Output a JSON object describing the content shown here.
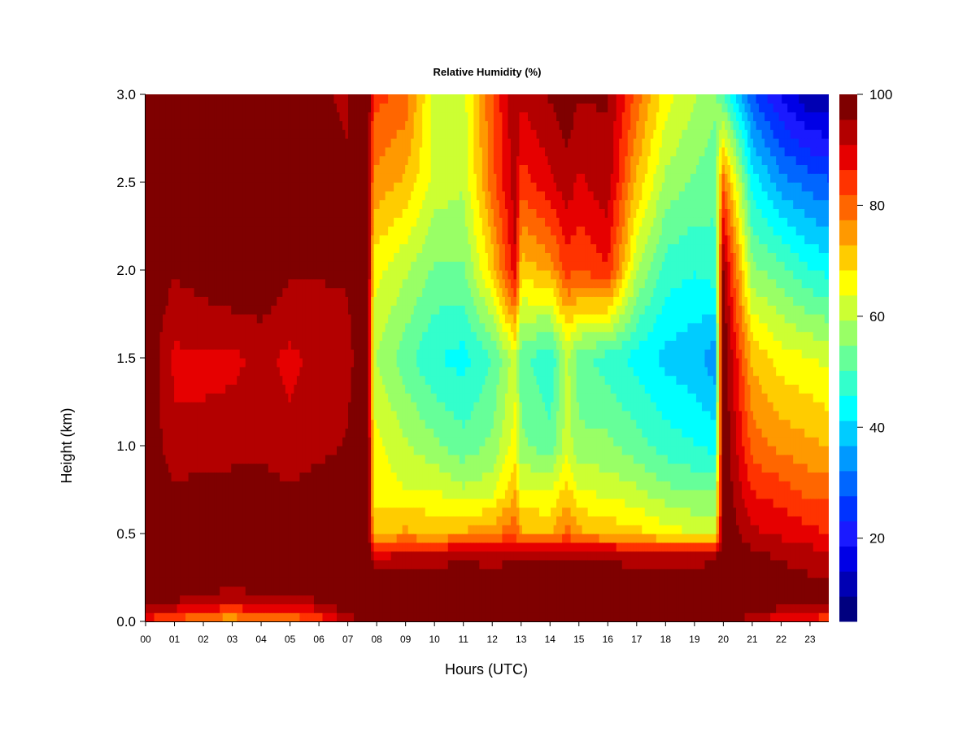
{
  "chart_data": {
    "type": "heatmap",
    "title": "Relative Humidity (%)",
    "xlabel": "Hours (UTC)",
    "ylabel": "Height (km)",
    "x_tick_labels": [
      "00",
      "01",
      "02",
      "03",
      "04",
      "05",
      "06",
      "07",
      "08",
      "09",
      "10",
      "11",
      "12",
      "13",
      "14",
      "15",
      "16",
      "17",
      "18",
      "19",
      "20",
      "21",
      "22",
      "23"
    ],
    "y_tick_labels": [
      "0.0",
      "0.5",
      "1.0",
      "1.5",
      "2.0",
      "2.5",
      "3.0"
    ],
    "xlim": [
      0,
      24
    ],
    "ylim": [
      0,
      3.0
    ],
    "colorbar": {
      "tick_labels": [
        "20",
        "40",
        "60",
        "80",
        "100"
      ],
      "tick_values": [
        20,
        40,
        60,
        80,
        100
      ],
      "range": [
        5,
        100
      ],
      "levels": 19,
      "colors": [
        "#00007f",
        "#0000b3",
        "#0000e6",
        "#1a1aff",
        "#0033ff",
        "#0066ff",
        "#0099ff",
        "#00ccff",
        "#00ffff",
        "#33ffcc",
        "#66ff99",
        "#99ff66",
        "#ccff33",
        "#ffff00",
        "#ffcc00",
        "#ff9900",
        "#ff6600",
        "#ff3300",
        "#e60000",
        "#b30000",
        "#7f0000"
      ]
    },
    "x": [
      0,
      1,
      2,
      3,
      4,
      5,
      6,
      7,
      7.7,
      7.9,
      9,
      10,
      11,
      12,
      12.8,
      13,
      14,
      14.6,
      15,
      16,
      17,
      18,
      19,
      19.7,
      20,
      21,
      22,
      23,
      23.8
    ],
    "y": [
      0.0,
      0.1,
      0.25,
      0.4,
      0.5,
      0.75,
      1.0,
      1.5,
      2.0,
      2.5,
      3.0
    ],
    "z": [
      [
        85,
        95,
        100,
        100,
        100,
        100,
        100,
        100,
        100,
        100,
        100
      ],
      [
        80,
        95,
        100,
        100,
        100,
        96,
        92,
        90,
        96,
        100,
        100
      ],
      [
        75,
        92,
        100,
        100,
        100,
        98,
        92,
        90,
        98,
        100,
        100
      ],
      [
        72,
        90,
        100,
        100,
        100,
        98,
        93,
        90,
        100,
        100,
        100
      ],
      [
        78,
        92,
        100,
        100,
        100,
        98,
        94,
        92,
        100,
        100,
        100
      ],
      [
        76,
        92,
        100,
        100,
        100,
        96,
        92,
        90,
        96,
        98,
        98
      ],
      [
        82,
        95,
        100,
        100,
        100,
        98,
        94,
        92,
        96,
        96,
        96
      ],
      [
        92,
        100,
        100,
        100,
        100,
        98,
        96,
        94,
        96,
        96,
        95
      ],
      [
        100,
        100,
        100,
        100,
        100,
        100,
        100,
        100,
        100,
        100,
        100
      ],
      [
        100,
        100,
        100,
        88,
        72,
        66,
        66,
        60,
        66,
        76,
        84
      ],
      [
        100,
        100,
        100,
        90,
        74,
        64,
        60,
        52,
        60,
        72,
        80
      ],
      [
        100,
        100,
        100,
        90,
        72,
        64,
        56,
        46,
        54,
        62,
        62
      ],
      [
        100,
        100,
        100,
        92,
        74,
        60,
        52,
        44,
        54,
        60,
        62
      ],
      [
        100,
        100,
        100,
        90,
        76,
        62,
        56,
        50,
        70,
        80,
        82
      ],
      [
        100,
        100,
        100,
        92,
        82,
        72,
        66,
        62,
        90,
        94,
        95
      ],
      [
        100,
        100,
        100,
        92,
        74,
        64,
        56,
        52,
        70,
        84,
        92
      ],
      [
        100,
        100,
        100,
        94,
        72,
        64,
        52,
        46,
        74,
        90,
        96
      ],
      [
        100,
        100,
        100,
        94,
        80,
        70,
        62,
        60,
        84,
        94,
        98
      ],
      [
        100,
        100,
        100,
        92,
        74,
        64,
        56,
        52,
        82,
        90,
        96
      ],
      [
        100,
        100,
        100,
        92,
        72,
        62,
        56,
        48,
        86,
        94,
        96
      ],
      [
        100,
        100,
        100,
        90,
        70,
        60,
        52,
        44,
        60,
        72,
        80
      ],
      [
        100,
        100,
        100,
        90,
        66,
        56,
        48,
        40,
        48,
        58,
        66
      ],
      [
        100,
        100,
        100,
        90,
        64,
        54,
        46,
        38,
        46,
        54,
        60
      ],
      [
        100,
        100,
        100,
        92,
        64,
        54,
        44,
        34,
        48,
        52,
        56
      ],
      [
        100,
        100,
        100,
        100,
        100,
        100,
        100,
        100,
        96,
        80,
        50
      ],
      [
        92,
        100,
        100,
        96,
        92,
        86,
        80,
        72,
        56,
        44,
        28
      ],
      [
        86,
        98,
        98,
        94,
        90,
        84,
        76,
        66,
        52,
        34,
        18
      ],
      [
        84,
        96,
        96,
        92,
        88,
        80,
        74,
        64,
        46,
        30,
        10
      ],
      [
        82,
        96,
        96,
        92,
        86,
        80,
        72,
        62,
        44,
        28,
        10
      ]
    ]
  }
}
